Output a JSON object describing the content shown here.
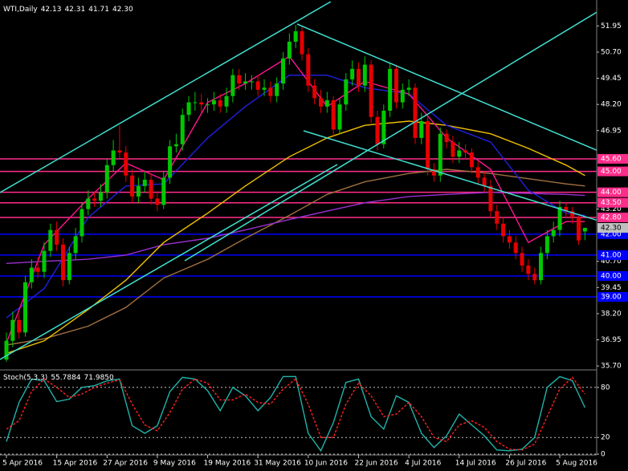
{
  "chart_data": [
    {
      "type": "candlestick",
      "title": "WTI,Daily",
      "header_values": [
        42.13,
        42.31,
        41.71,
        {
          "value": 42.3,
          "label": "42.30"
        }
      ],
      "categories": [
        "5 Apr 2016",
        null,
        null,
        null,
        null,
        null,
        null,
        null,
        "15 Apr 2016",
        null,
        null,
        null,
        null,
        null,
        null,
        null,
        "27 Apr 2016",
        null,
        null,
        null,
        null,
        null,
        null,
        null,
        "9 May 2016",
        null,
        null,
        null,
        null,
        null,
        null,
        null,
        "19 May 2016",
        null,
        null,
        null,
        null,
        null,
        null,
        null,
        "31 May 2016",
        null,
        null,
        null,
        null,
        null,
        null,
        null,
        "10 Jun 2016",
        null,
        null,
        null,
        null,
        null,
        null,
        null,
        "22 Jun 2016",
        null,
        null,
        null,
        null,
        null,
        null,
        null,
        "4 Jul 2016",
        null,
        null,
        null,
        null,
        null,
        null,
        null,
        "14 Jul 2016",
        null,
        null,
        null,
        null,
        null,
        null,
        null,
        "26 Jul 2016",
        null,
        null,
        null,
        null,
        null,
        null,
        null,
        "5 Aug 2016",
        null,
        null,
        null,
        null
      ],
      "open": [
        36.0,
        36.9,
        37.9,
        37.3,
        39.7,
        40.4,
        40.2,
        41.2,
        42.2,
        41.5,
        39.8,
        41.1,
        41.9,
        43.2,
        43.7,
        43.6,
        44.0,
        45.3,
        46.0,
        45.9,
        44.8,
        43.8,
        44.3,
        44.6,
        43.7,
        43.4,
        44.7,
        46.2,
        46.3,
        47.7,
        48.3,
        48.3,
        48.2,
        48.2,
        48.4,
        48.1,
        48.6,
        49.6,
        49.2,
        49.3,
        49.3,
        48.9,
        49.0,
        48.6,
        49.2,
        50.4,
        51.2,
        51.7,
        50.6,
        49.1,
        48.5,
        48.1,
        48.4,
        47.0,
        48.2,
        49.4,
        49.9,
        49.1,
        50.1,
        47.6,
        46.3,
        47.9,
        49.9,
        48.3,
        48.9,
        49.0,
        46.6,
        47.4,
        45.1,
        44.8,
        46.8,
        46.4,
        45.7,
        46.0,
        45.9,
        45.2,
        44.7,
        44.3,
        43.1,
        42.5,
        41.9,
        41.6,
        41.1,
        40.5,
        40.1,
        39.8,
        41.1,
        41.9,
        42.2,
        43.3,
        43.1,
        42.8,
        42.13
      ],
      "high": [
        37.3,
        38.3,
        38.2,
        40.0,
        40.8,
        40.9,
        41.6,
        42.5,
        42.6,
        41.8,
        41.4,
        42.3,
        43.5,
        44.1,
        44.0,
        44.4,
        45.6,
        46.5,
        47.2,
        46.2,
        45.1,
        44.7,
        45.0,
        44.9,
        44.0,
        45.0,
        46.5,
        46.8,
        48.0,
        48.6,
        48.8,
        48.7,
        48.5,
        48.8,
        48.7,
        49.0,
        49.9,
        49.9,
        49.7,
        49.6,
        49.6,
        49.4,
        49.3,
        49.5,
        50.7,
        51.6,
        52.0,
        51.9,
        50.9,
        49.4,
        48.9,
        48.8,
        48.6,
        48.5,
        49.7,
        50.3,
        50.2,
        50.5,
        50.3,
        47.9,
        48.2,
        50.2,
        50.1,
        49.2,
        49.4,
        49.2,
        47.8,
        47.6,
        45.4,
        47.1,
        47.0,
        46.7,
        46.4,
        46.3,
        46.1,
        45.5,
        45.0,
        44.6,
        43.4,
        42.8,
        42.2,
        41.9,
        41.4,
        40.8,
        40.4,
        41.4,
        42.2,
        42.6,
        43.6,
        43.5,
        43.3,
        42.9,
        42.31
      ],
      "low": [
        35.9,
        36.6,
        37.0,
        37.1,
        39.4,
        39.9,
        39.9,
        40.9,
        41.2,
        39.5,
        39.6,
        40.8,
        41.6,
        42.9,
        43.3,
        43.3,
        43.7,
        45.0,
        45.6,
        44.5,
        43.5,
        43.5,
        44.0,
        43.4,
        43.1,
        43.2,
        44.4,
        45.9,
        46.0,
        47.4,
        47.9,
        47.8,
        47.8,
        47.9,
        47.8,
        47.8,
        48.3,
        48.9,
        48.9,
        48.9,
        48.6,
        48.6,
        48.3,
        48.3,
        48.9,
        50.1,
        50.9,
        50.3,
        48.8,
        48.2,
        47.8,
        47.8,
        46.7,
        46.8,
        47.9,
        49.1,
        48.8,
        48.8,
        47.3,
        46.0,
        46.1,
        47.6,
        48.0,
        48.0,
        48.6,
        46.3,
        46.3,
        44.8,
        44.5,
        44.5,
        46.1,
        45.4,
        45.4,
        45.6,
        44.9,
        44.4,
        44.0,
        42.8,
        42.2,
        41.6,
        41.3,
        40.8,
        40.2,
        39.8,
        39.6,
        39.6,
        40.8,
        41.6,
        41.9,
        42.8,
        42.5,
        41.5,
        41.71
      ],
      "close": [
        36.9,
        37.9,
        37.3,
        39.7,
        40.4,
        40.2,
        41.2,
        42.2,
        41.5,
        39.8,
        41.1,
        41.9,
        43.2,
        43.7,
        43.6,
        44.0,
        45.3,
        46.0,
        45.9,
        44.8,
        43.8,
        44.3,
        44.6,
        43.7,
        43.4,
        44.7,
        46.2,
        46.3,
        47.7,
        48.3,
        48.3,
        48.2,
        48.2,
        48.4,
        48.1,
        48.6,
        49.6,
        49.2,
        49.3,
        49.3,
        48.9,
        49.0,
        48.6,
        49.2,
        50.4,
        51.2,
        51.7,
        50.6,
        49.1,
        48.5,
        48.1,
        48.4,
        47.0,
        48.2,
        49.4,
        49.9,
        49.1,
        50.1,
        47.6,
        46.3,
        47.9,
        49.9,
        48.3,
        48.9,
        49.0,
        46.6,
        47.4,
        45.1,
        44.8,
        46.8,
        46.4,
        45.7,
        46.0,
        45.9,
        45.2,
        44.7,
        44.3,
        43.1,
        42.5,
        41.9,
        41.6,
        41.1,
        40.5,
        40.1,
        39.8,
        41.1,
        41.9,
        42.2,
        43.3,
        43.1,
        42.8,
        41.7,
        42.3
      ],
      "up_color": "#00c800",
      "down_color": "#e60000",
      "series": [
        {
          "color": "#a07040",
          "x": [
            0,
            6,
            13,
            19,
            25,
            32,
            38,
            45,
            51,
            57,
            64,
            70,
            77,
            83,
            89,
            92
          ],
          "values": [
            36.7,
            37.0,
            37.6,
            38.5,
            39.9,
            40.8,
            41.8,
            42.9,
            43.9,
            44.5,
            44.9,
            45.1,
            44.9,
            44.65,
            44.4,
            44.3
          ]
        },
        {
          "color": "#9b30d0",
          "x": [
            0,
            6,
            13,
            19,
            25,
            32,
            38,
            45,
            51,
            57,
            64,
            70,
            77,
            83,
            89,
            92
          ],
          "values": [
            40.6,
            40.7,
            40.8,
            41.0,
            41.5,
            41.8,
            42.2,
            42.7,
            43.1,
            43.5,
            43.8,
            43.9,
            44.0,
            43.95,
            43.9,
            43.85
          ]
        },
        {
          "color": "#f0c000",
          "x": [
            0,
            6,
            13,
            19,
            25,
            32,
            38,
            45,
            51,
            57,
            64,
            70,
            77,
            83,
            89,
            92
          ],
          "values": [
            36.3,
            36.9,
            38.4,
            39.8,
            41.6,
            43.0,
            44.3,
            45.7,
            46.6,
            47.2,
            47.4,
            47.2,
            46.8,
            46.1,
            45.3,
            44.8
          ]
        },
        {
          "color": "#2020e0",
          "x": [
            0,
            6,
            13,
            19,
            25,
            32,
            38,
            45,
            51,
            57,
            64,
            70,
            77,
            83,
            89,
            92
          ],
          "values": [
            38.0,
            39.4,
            42.8,
            44.3,
            44.4,
            46.6,
            48.1,
            49.6,
            49.6,
            49.0,
            48.7,
            47.2,
            46.4,
            44.1,
            43.0,
            42.9
          ]
        },
        {
          "color": "#ff1493",
          "x": [
            0,
            6,
            13,
            19,
            25,
            32,
            38,
            45,
            51,
            57,
            64,
            70,
            77,
            83,
            89,
            92
          ],
          "values": [
            36.8,
            41.5,
            43.7,
            45.4,
            44.6,
            48.3,
            49.2,
            50.5,
            48.1,
            49.3,
            48.7,
            46.6,
            45.1,
            41.6,
            42.6,
            42.6
          ]
        }
      ],
      "ylim": [
        35.55,
        53.0
      ],
      "yticks": [
        51.95,
        {
          "value": 50.7,
          "label": "50.70"
        },
        49.45,
        {
          "value": 48.2,
          "label": "48.20"
        },
        46.95,
        {
          "value": 43.2,
          "label": "43.20"
        },
        {
          "value": 40.7,
          "label": "40.70"
        },
        39.45,
        {
          "value": 38.2,
          "label": "38.20"
        },
        36.95,
        {
          "value": 35.7,
          "label": "35.70"
        }
      ],
      "levels": [
        {
          "value": 45.6,
          "label": "45.60",
          "color": "#ff2d8a"
        },
        {
          "value": 45.0,
          "label": "45.00",
          "color": "#ff2d8a"
        },
        {
          "value": 44.0,
          "label": "44.00",
          "color": "#ff2d8a"
        },
        {
          "value": 43.5,
          "label": "43.50",
          "color": "#ff2d8a"
        },
        {
          "value": 42.8,
          "label": "42.80",
          "color": "#ff2d8a"
        },
        {
          "value": 42.0,
          "label": "42.00",
          "color": "#0000ff"
        },
        {
          "value": 41.0,
          "label": "41.00",
          "color": "#0000ff"
        },
        {
          "value": 40.0,
          "label": "40.00",
          "color": "#0000ff"
        },
        {
          "value": 39.0,
          "label": "39.00",
          "color": "#0000ff"
        }
      ],
      "last_price": {
        "value": 42.3,
        "label": "42.30"
      }
    },
    {
      "type": "line",
      "title": "Stoch(5,3,3)",
      "header_values": [
        55.7884,
        {
          "value": 71.985,
          "label": "71.9850"
        }
      ],
      "series": [
        {
          "color": "#20b2aa",
          "x": [
            0,
            2,
            4,
            6,
            8,
            10,
            12,
            14,
            16,
            18,
            20,
            22,
            24,
            26,
            28,
            30,
            32,
            34,
            36,
            38,
            40,
            42,
            44,
            46,
            48,
            50,
            52,
            54,
            56,
            58,
            60,
            62,
            64,
            66,
            68,
            70,
            72,
            74,
            76,
            78,
            80,
            82,
            84,
            86,
            88,
            90,
            92
          ],
          "values": [
            15,
            62,
            90,
            88,
            63,
            66,
            80,
            82,
            88,
            90,
            34,
            25,
            34,
            75,
            92,
            90,
            76,
            52,
            80,
            70,
            52,
            68,
            93,
            93,
            25,
            4,
            38,
            86,
            90,
            45,
            30,
            70,
            62,
            25,
            8,
            22,
            48,
            35,
            22,
            5,
            4,
            6,
            20,
            80,
            93,
            88,
            55.7884
          ]
        },
        {
          "color": "#ff2020",
          "dash": true,
          "x": [
            0,
            2,
            4,
            6,
            8,
            10,
            12,
            14,
            16,
            18,
            20,
            22,
            24,
            26,
            28,
            30,
            32,
            34,
            36,
            38,
            40,
            42,
            44,
            46,
            48,
            50,
            52,
            54,
            56,
            58,
            60,
            62,
            64,
            66,
            68,
            70,
            72,
            74,
            76,
            78,
            80,
            82,
            84,
            86,
            88,
            90,
            92
          ],
          "values": [
            30,
            40,
            75,
            90,
            80,
            68,
            72,
            80,
            85,
            89,
            60,
            35,
            28,
            50,
            78,
            90,
            85,
            65,
            65,
            72,
            62,
            60,
            78,
            90,
            60,
            20,
            20,
            60,
            85,
            70,
            45,
            48,
            62,
            45,
            20,
            15,
            35,
            40,
            32,
            15,
            6,
            5,
            12,
            45,
            78,
            92,
            71.985
          ]
        }
      ],
      "ylim": [
        0,
        100
      ],
      "yticks": [
        0,
        20,
        80
      ]
    }
  ]
}
